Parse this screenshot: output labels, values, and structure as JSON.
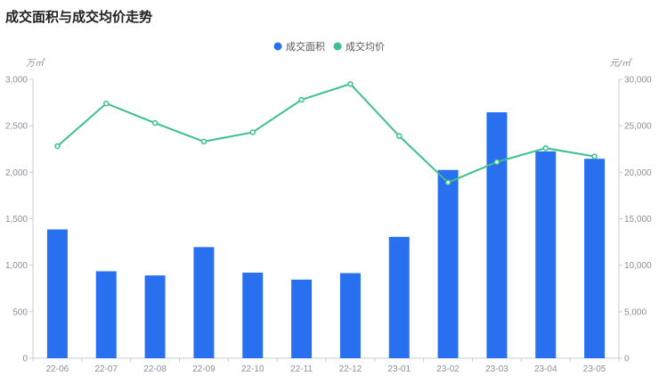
{
  "chart_data": {
    "type": "bar",
    "title": "成交面积与成交均价走势",
    "categories": [
      "22-06",
      "22-07",
      "22-08",
      "22-09",
      "22-10",
      "22-11",
      "22-12",
      "23-01",
      "23-02",
      "23-03",
      "23-04",
      "23-05"
    ],
    "series": [
      {
        "name": "成交面积",
        "type": "bar",
        "axis": "left",
        "color": "#2970f0",
        "values": [
          1385,
          935,
          890,
          1195,
          920,
          845,
          915,
          1305,
          2025,
          2645,
          2225,
          2145
        ]
      },
      {
        "name": "成交均价",
        "type": "line",
        "axis": "right",
        "color": "#3cc18a",
        "values": [
          22800,
          27400,
          25300,
          23300,
          24300,
          27800,
          29500,
          23900,
          18900,
          21100,
          22600,
          21700
        ]
      }
    ],
    "y_left": {
      "unit": "万㎡",
      "ylim": [
        0,
        3000
      ],
      "ticks": [
        "0",
        "500",
        "1,000",
        "1,500",
        "2,000",
        "2,500",
        "3,000"
      ]
    },
    "y_right": {
      "unit": "元/㎡",
      "ylim": [
        0,
        30000
      ],
      "ticks": [
        "0",
        "5,000",
        "10,000",
        "15,000",
        "20,000",
        "25,000",
        "30,000"
      ]
    },
    "grid": false,
    "legend_position": "top-center"
  }
}
